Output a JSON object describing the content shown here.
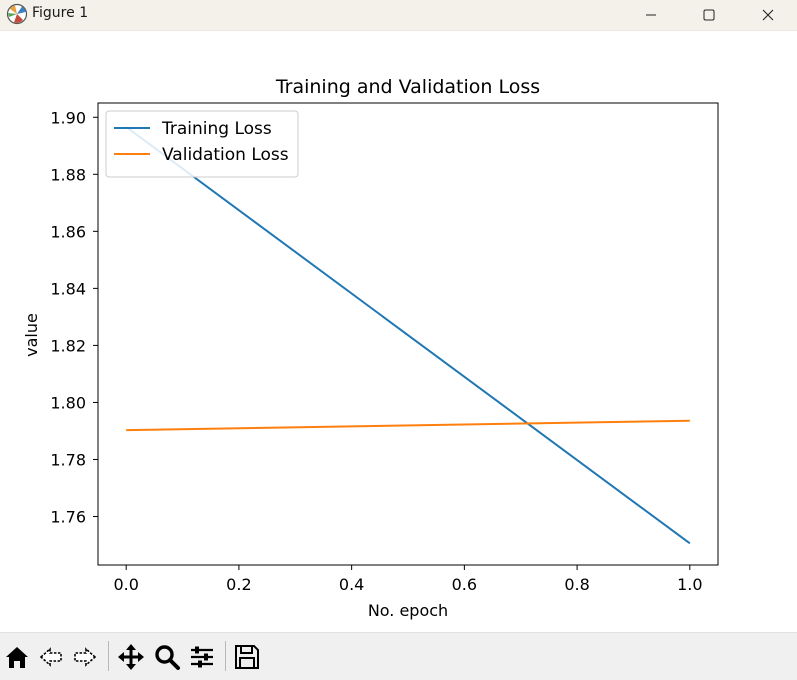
{
  "window": {
    "title": "Figure 1",
    "icons": {
      "app": "matplotlib-icon",
      "minimize": "minimize-icon",
      "maximize": "maximize-icon",
      "close": "close-icon"
    }
  },
  "chart_data": {
    "type": "line",
    "title": "Training and Validation Loss",
    "xlabel": "No. epoch",
    "ylabel": "value",
    "xlim": [
      -0.05,
      1.05
    ],
    "ylim": [
      1.743,
      1.905
    ],
    "xticks": [
      "0.0",
      "0.2",
      "0.4",
      "0.6",
      "0.8",
      "1.0"
    ],
    "yticks": [
      "1.76",
      "1.78",
      "1.80",
      "1.82",
      "1.84",
      "1.86",
      "1.88",
      "1.90"
    ],
    "legend_position": "upper-left",
    "grid": false,
    "series": [
      {
        "name": "Training Loss",
        "color": "#1f77b4",
        "x": [
          0,
          1
        ],
        "y": [
          1.8966,
          1.7506
        ]
      },
      {
        "name": "Validation Loss",
        "color": "#ff7f0e",
        "x": [
          0,
          1
        ],
        "y": [
          1.7903,
          1.7936
        ]
      }
    ]
  },
  "toolbar": {
    "items": [
      {
        "name": "home-icon"
      },
      {
        "name": "back-icon"
      },
      {
        "name": "forward-icon"
      },
      {
        "name": "pan-icon"
      },
      {
        "name": "zoom-icon"
      },
      {
        "name": "configure-subplots-icon"
      },
      {
        "name": "save-icon"
      }
    ]
  }
}
